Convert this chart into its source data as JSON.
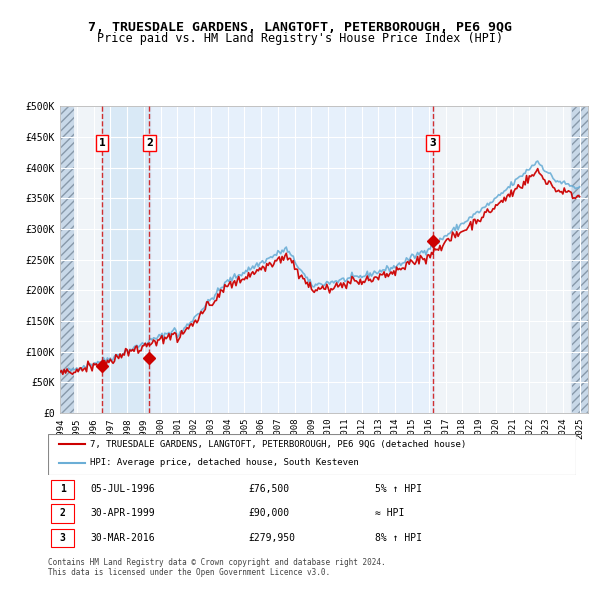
{
  "title": "7, TRUESDALE GARDENS, LANGTOFT, PETERBOROUGH, PE6 9QG",
  "subtitle": "Price paid vs. HM Land Registry's House Price Index (HPI)",
  "xlim": [
    1994.0,
    2025.5
  ],
  "ylim": [
    0,
    500000
  ],
  "yticks": [
    0,
    50000,
    100000,
    150000,
    200000,
    250000,
    300000,
    350000,
    400000,
    450000,
    500000
  ],
  "ytick_labels": [
    "£0",
    "£50K",
    "£100K",
    "£150K",
    "£200K",
    "£250K",
    "£300K",
    "£350K",
    "£400K",
    "£450K",
    "£500K"
  ],
  "xticks": [
    1994,
    1995,
    1996,
    1997,
    1998,
    1999,
    2000,
    2001,
    2002,
    2003,
    2004,
    2005,
    2006,
    2007,
    2008,
    2009,
    2010,
    2011,
    2012,
    2013,
    2014,
    2015,
    2016,
    2017,
    2018,
    2019,
    2020,
    2021,
    2022,
    2023,
    2024,
    2025
  ],
  "sale_dates": [
    1996.51,
    1999.33,
    2016.24
  ],
  "sale_prices": [
    76500,
    90000,
    279950
  ],
  "sale_labels": [
    "1",
    "2",
    "3"
  ],
  "hpi_color": "#6baed6",
  "price_color": "#cc0000",
  "marker_color": "#cc0000",
  "dashed_color": "#cc0000",
  "shade_color": "#ddeeff",
  "hatch_color": "#bbccdd",
  "legend_line1": "7, TRUESDALE GARDENS, LANGTOFT, PETERBOROUGH, PE6 9QG (detached house)",
  "legend_line2": "HPI: Average price, detached house, South Kesteven",
  "table_rows": [
    {
      "num": "1",
      "date": "05-JUL-1996",
      "price": "£76,500",
      "note": "5% ↑ HPI"
    },
    {
      "num": "2",
      "date": "30-APR-1999",
      "price": "£90,000",
      "note": "≈ HPI"
    },
    {
      "num": "3",
      "date": "30-MAR-2016",
      "price": "£279,950",
      "note": "8% ↑ HPI"
    }
  ],
  "footer": "Contains HM Land Registry data © Crown copyright and database right 2024.\nThis data is licensed under the Open Government Licence v3.0.",
  "bg_color": "#ffffff",
  "plot_bg_color": "#f0f4f8",
  "grid_color": "#ffffff"
}
